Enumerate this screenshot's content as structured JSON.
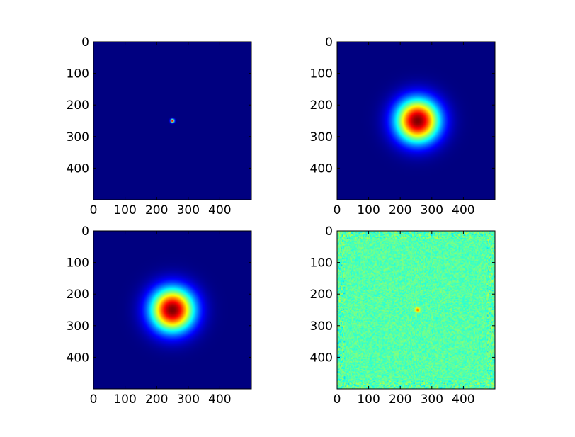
{
  "chart_data": [
    {
      "type": "heatmap",
      "panel": "top-left",
      "colormap": "jet",
      "image_size": [
        500,
        500
      ],
      "xlim": [
        0,
        500
      ],
      "ylim": [
        500,
        0
      ],
      "xticks": [
        0,
        100,
        200,
        300,
        400
      ],
      "yticks": [
        0,
        100,
        200,
        300,
        400
      ],
      "pattern": "narrow gaussian peak",
      "peak_center": [
        250,
        250
      ],
      "peak_sigma": 4,
      "background_level": 0.0
    },
    {
      "type": "heatmap",
      "panel": "top-right",
      "colormap": "jet",
      "image_size": [
        500,
        500
      ],
      "xlim": [
        0,
        500
      ],
      "ylim": [
        500,
        0
      ],
      "xticks": [
        0,
        100,
        200,
        300,
        400
      ],
      "yticks": [
        0,
        100,
        200,
        300,
        400
      ],
      "pattern": "broad gaussian peak",
      "peak_center": [
        255,
        250
      ],
      "peak_sigma": 48,
      "background_level": 0.0
    },
    {
      "type": "heatmap",
      "panel": "bottom-left",
      "colormap": "jet",
      "image_size": [
        500,
        500
      ],
      "xlim": [
        0,
        500
      ],
      "ylim": [
        500,
        0
      ],
      "xticks": [
        0,
        100,
        200,
        300,
        400
      ],
      "yticks": [
        0,
        100,
        200,
        300,
        400
      ],
      "pattern": "broad gaussian peak",
      "peak_center": [
        250,
        250
      ],
      "peak_sigma": 48,
      "background_level": 0.0
    },
    {
      "type": "heatmap",
      "panel": "bottom-right",
      "colormap": "jet",
      "image_size": [
        500,
        500
      ],
      "xlim": [
        0,
        500
      ],
      "ylim": [
        500,
        0
      ],
      "xticks": [
        0,
        100,
        200,
        300,
        400
      ],
      "yticks": [
        0,
        100,
        200,
        300,
        400
      ],
      "pattern": "noise field with small central peak",
      "peak_center": [
        255,
        250
      ],
      "peak_sigma": 5,
      "background_level": 0.46,
      "noise_amplitude": 0.06
    }
  ]
}
